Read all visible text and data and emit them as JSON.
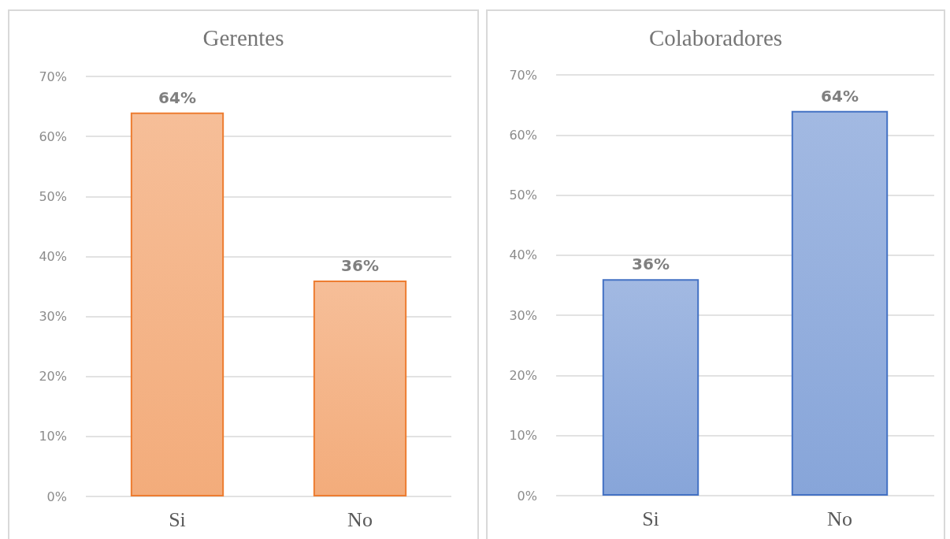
{
  "chart_data": [
    {
      "type": "bar",
      "title": "Gerentes",
      "categories": [
        "Si",
        "No"
      ],
      "values": [
        64,
        36
      ],
      "value_labels": [
        "64%",
        "36%"
      ],
      "color": "#ed7d31",
      "ylim": [
        0,
        70
      ],
      "yticks": [
        {
          "value": 0,
          "label": "0%"
        },
        {
          "value": 10,
          "label": "10%"
        },
        {
          "value": 20,
          "label": "20%"
        },
        {
          "value": 30,
          "label": "30%"
        },
        {
          "value": 40,
          "label": "40%"
        },
        {
          "value": 50,
          "label": "50%"
        },
        {
          "value": 60,
          "label": "60%"
        },
        {
          "value": 70,
          "label": "70%"
        }
      ],
      "grid": "y"
    },
    {
      "type": "bar",
      "title": "Colaboradores",
      "categories": [
        "Si",
        "No"
      ],
      "values": [
        36,
        64
      ],
      "value_labels": [
        "36%",
        "64%"
      ],
      "color": "#4472c4",
      "ylim": [
        0,
        70
      ],
      "yticks": [
        {
          "value": 0,
          "label": "0%"
        },
        {
          "value": 10,
          "label": "10%"
        },
        {
          "value": 20,
          "label": "20%"
        },
        {
          "value": 30,
          "label": "30%"
        },
        {
          "value": 40,
          "label": "40%"
        },
        {
          "value": 50,
          "label": "50%"
        },
        {
          "value": 60,
          "label": "60%"
        },
        {
          "value": 70,
          "label": "70%"
        }
      ],
      "grid": "y"
    }
  ]
}
